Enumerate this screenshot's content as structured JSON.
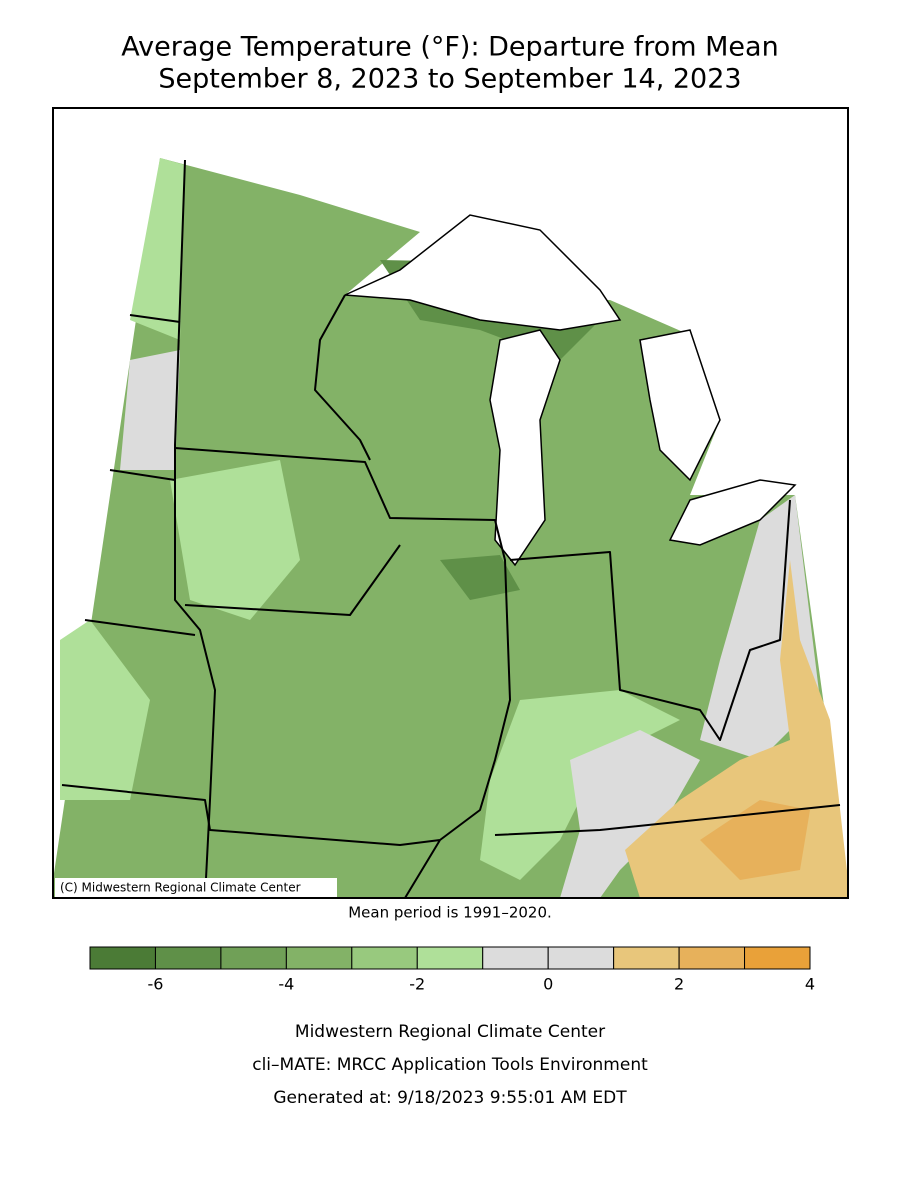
{
  "title": [
    "Average Temperature (°F): Departure from Mean",
    "September 8, 2023 to September 14, 2023"
  ],
  "map": {
    "credit": "(C) Midwestern Regional Climate Center"
  },
  "note": "Mean period is 1991–2020.",
  "legend": {
    "bins": [
      -7,
      -6,
      -5,
      -4,
      -3,
      -2,
      -1,
      0,
      1,
      2,
      3,
      4
    ],
    "colors": [
      "#4b7b36",
      "#5f9048",
      "#70a057",
      "#83b267",
      "#98c97e",
      "#afe099",
      "#dcdcdc",
      "#dcdcdc",
      "#e8c67b",
      "#e7b15b",
      "#e9a139"
    ],
    "ticks": [
      -6,
      -4,
      -2,
      0,
      2,
      4
    ]
  },
  "footer": [
    "Midwestern Regional Climate Center",
    "cli–MATE: MRCC Application Tools Environment",
    "Generated at: 9/18/2023 9:55:01 AM EDT"
  ]
}
